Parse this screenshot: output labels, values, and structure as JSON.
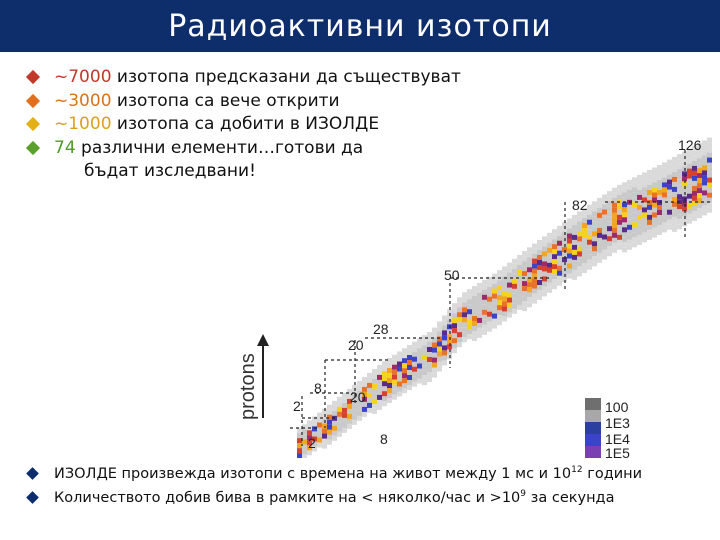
{
  "title": "Радиоактивни изотопи",
  "colors": {
    "title_bg": "#0e2d6b",
    "bullet_1": "#c0392b",
    "bullet_2": "#e0701e",
    "bullet_3": "#e3b117",
    "bullet_4": "#5aa02c"
  },
  "bullets_top": [
    {
      "highlight": "~7000",
      "text": " изотопа предсказани да съществуват"
    },
    {
      "highlight": "~3000",
      "text": " изотопа са вече открити"
    },
    {
      "highlight": "~1000",
      "text": " изотопа са добити в ИЗОЛДЕ"
    },
    {
      "highlight": "74",
      "text": " различни елементи…готови да",
      "continuation": "бъдат изследвани!"
    }
  ],
  "chart": {
    "axis_label": "protons",
    "magic_numbers": [
      "126",
      "82",
      "50",
      "28",
      "20",
      "8",
      "2",
      "20",
      "8",
      "2"
    ],
    "legend": [
      "100",
      "1E3",
      "1E4",
      "1E5"
    ],
    "legend_colors": [
      "#6f6f6f",
      "#9a9a9a",
      "#2a3f9e",
      "#3b44c8",
      "#7a3fb0"
    ]
  },
  "bullets_bottom": [
    {
      "text": "ИЗОЛДЕ произвежда изотопи с времена на живот между 1 мс и 10",
      "sup": "12",
      "tail": " години"
    },
    {
      "text": "Количеството добив бива в рамките на < няколко/час  и >10",
      "sup": "9",
      "tail": " за секунда"
    }
  ]
}
